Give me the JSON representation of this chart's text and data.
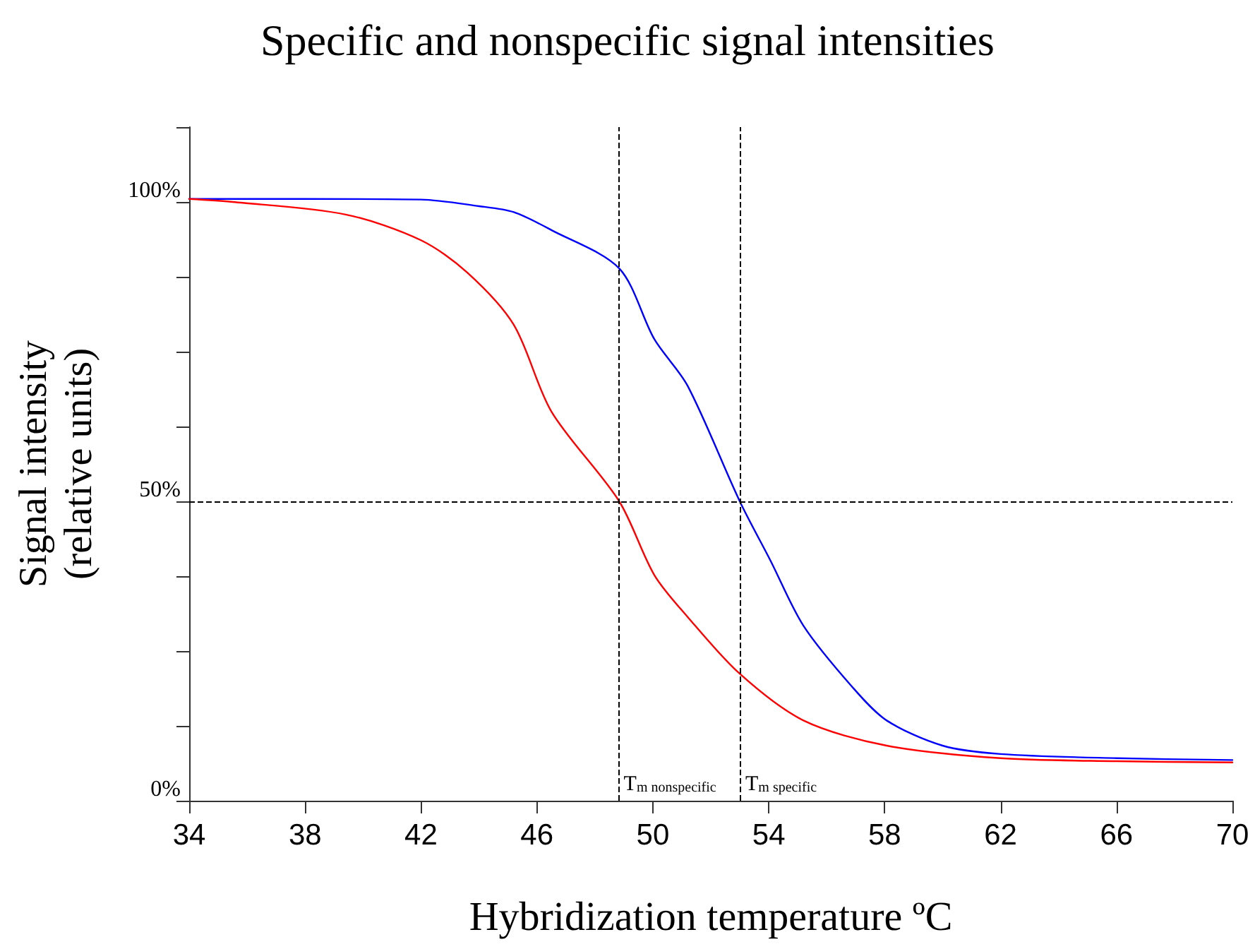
{
  "chart_data": {
    "type": "line",
    "title": "Specific and nonspecific signal intensities",
    "xlabel": "Hybridization temperature ºC",
    "ylabel": "Signal intensity\n(relative units)",
    "series": [
      {
        "color": "#0000ff",
        "x": [
          34,
          38,
          42,
          44,
          45.2,
          46.5,
          48.84,
          50.05,
          51.2,
          53,
          54.06,
          55.2,
          56.9,
          58.07,
          60,
          62,
          66,
          70
        ],
        "values": [
          100.5,
          100.5,
          100.4,
          99.3,
          98.3,
          95.3,
          88.9,
          77.1,
          69.3,
          50,
          40.1,
          29.2,
          18.9,
          13.4,
          9.2,
          7.8,
          7.1,
          6.8
        ]
      },
      {
        "color": "#ff0000",
        "x": [
          34,
          35.5,
          39.4,
          42,
          43.6,
          45.2,
          46.5,
          48.84,
          50.05,
          51.2,
          53,
          55.2,
          58.07,
          62,
          66,
          70
        ],
        "values": [
          100.5,
          100,
          97.9,
          93.6,
          88.2,
          79.5,
          65,
          50,
          37.7,
          30.7,
          21.2,
          13.4,
          9.2,
          7.1,
          6.6,
          6.4
        ]
      }
    ],
    "xlim": [
      34,
      70
    ],
    "xticks": [
      34,
      38,
      42,
      46,
      50,
      54,
      58,
      62,
      66,
      70
    ],
    "ylim": [
      0,
      112.5
    ],
    "yticks": [
      {
        "value": 0,
        "label": "0%"
      },
      {
        "value": 12.5,
        "label": null
      },
      {
        "value": 25,
        "label": null
      },
      {
        "value": 37.5,
        "label": null
      },
      {
        "value": 50,
        "label": "50%"
      },
      {
        "value": 62.5,
        "label": null
      },
      {
        "value": 75,
        "label": null
      },
      {
        "value": 87.5,
        "label": null
      },
      {
        "value": 100,
        "label": "100%"
      },
      {
        "value": 112.5,
        "label": null
      }
    ],
    "ref_lines": [
      {
        "axis": "y",
        "value": 50,
        "label": null,
        "color": "#000000",
        "line_style": "dashed"
      },
      {
        "axis": "x",
        "value": 48.8,
        "label": "T$_{m nonspecific}$",
        "color": "#000000",
        "line_style": "dashed"
      },
      {
        "axis": "x",
        "value": 53,
        "label": "T$_{m specific}$",
        "color": "#000000",
        "line_style": "dashed"
      }
    ],
    "grid": false,
    "marker": "none",
    "line_style": "solid"
  }
}
